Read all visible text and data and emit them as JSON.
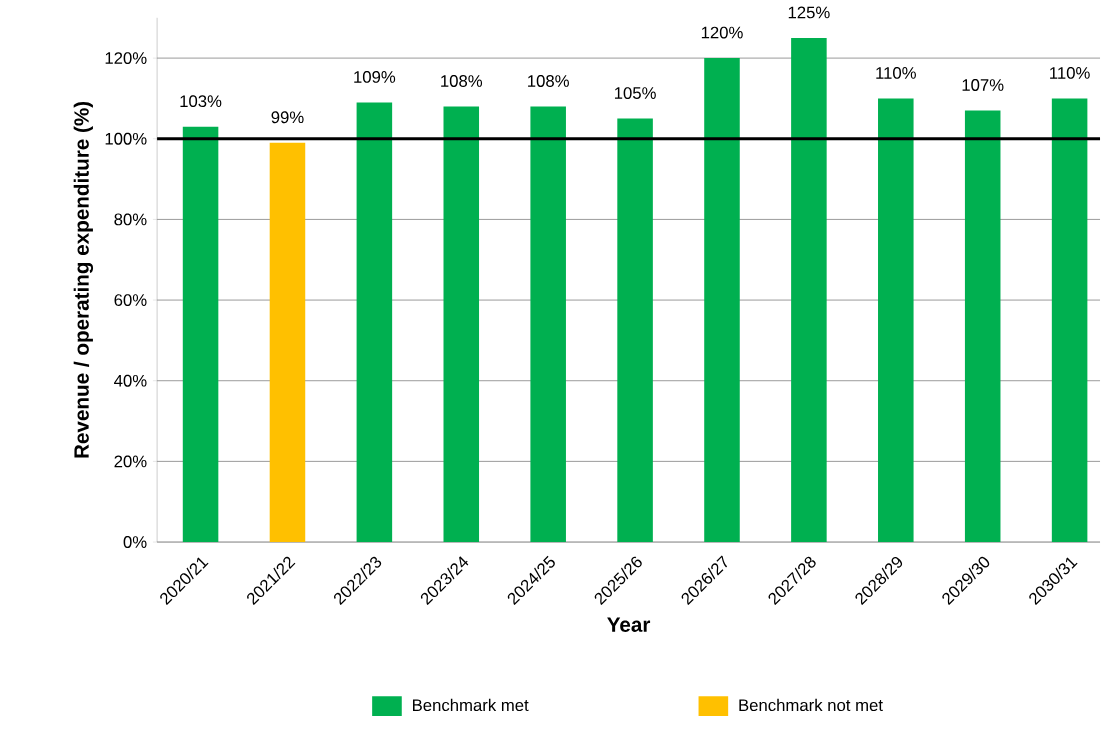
{
  "chart_data": {
    "type": "bar",
    "xlabel": "Year",
    "ylabel": "Revenue / operating expenditure (%)",
    "categories": [
      "2020/21",
      "2021/22",
      "2022/23",
      "2023/24",
      "2024/25",
      "2025/26",
      "2026/27",
      "2027/28",
      "2028/29",
      "2029/30",
      "2030/31"
    ],
    "series": [
      {
        "name": "Benchmark met",
        "color": "#00b050",
        "values": [
          103,
          null,
          109,
          108,
          108,
          105,
          120,
          125,
          110,
          107,
          110
        ],
        "value_labels": [
          "103%",
          null,
          "109%",
          "108%",
          "108%",
          "105%",
          "120%",
          "125%",
          "110%",
          "107%",
          "110%"
        ]
      },
      {
        "name": "Benchmark not met",
        "color": "#ffc000",
        "values": [
          null,
          99,
          null,
          null,
          null,
          null,
          null,
          null,
          null,
          null,
          null
        ],
        "value_labels": [
          null,
          "99%",
          null,
          null,
          null,
          null,
          null,
          null,
          null,
          null,
          null
        ]
      }
    ],
    "ylim": [
      0,
      130
    ],
    "yticks": [
      {
        "value": 0,
        "label": "0%"
      },
      {
        "value": 20,
        "label": "20%"
      },
      {
        "value": 40,
        "label": "40%"
      },
      {
        "value": 60,
        "label": "60%"
      },
      {
        "value": 80,
        "label": "80%"
      },
      {
        "value": 100,
        "label": "100%"
      },
      {
        "value": 120,
        "label": "120%"
      }
    ],
    "ref_lines": [
      {
        "axis": "y",
        "value": 100,
        "color": "#000000"
      }
    ],
    "grid": "y",
    "legend": "bottom"
  }
}
